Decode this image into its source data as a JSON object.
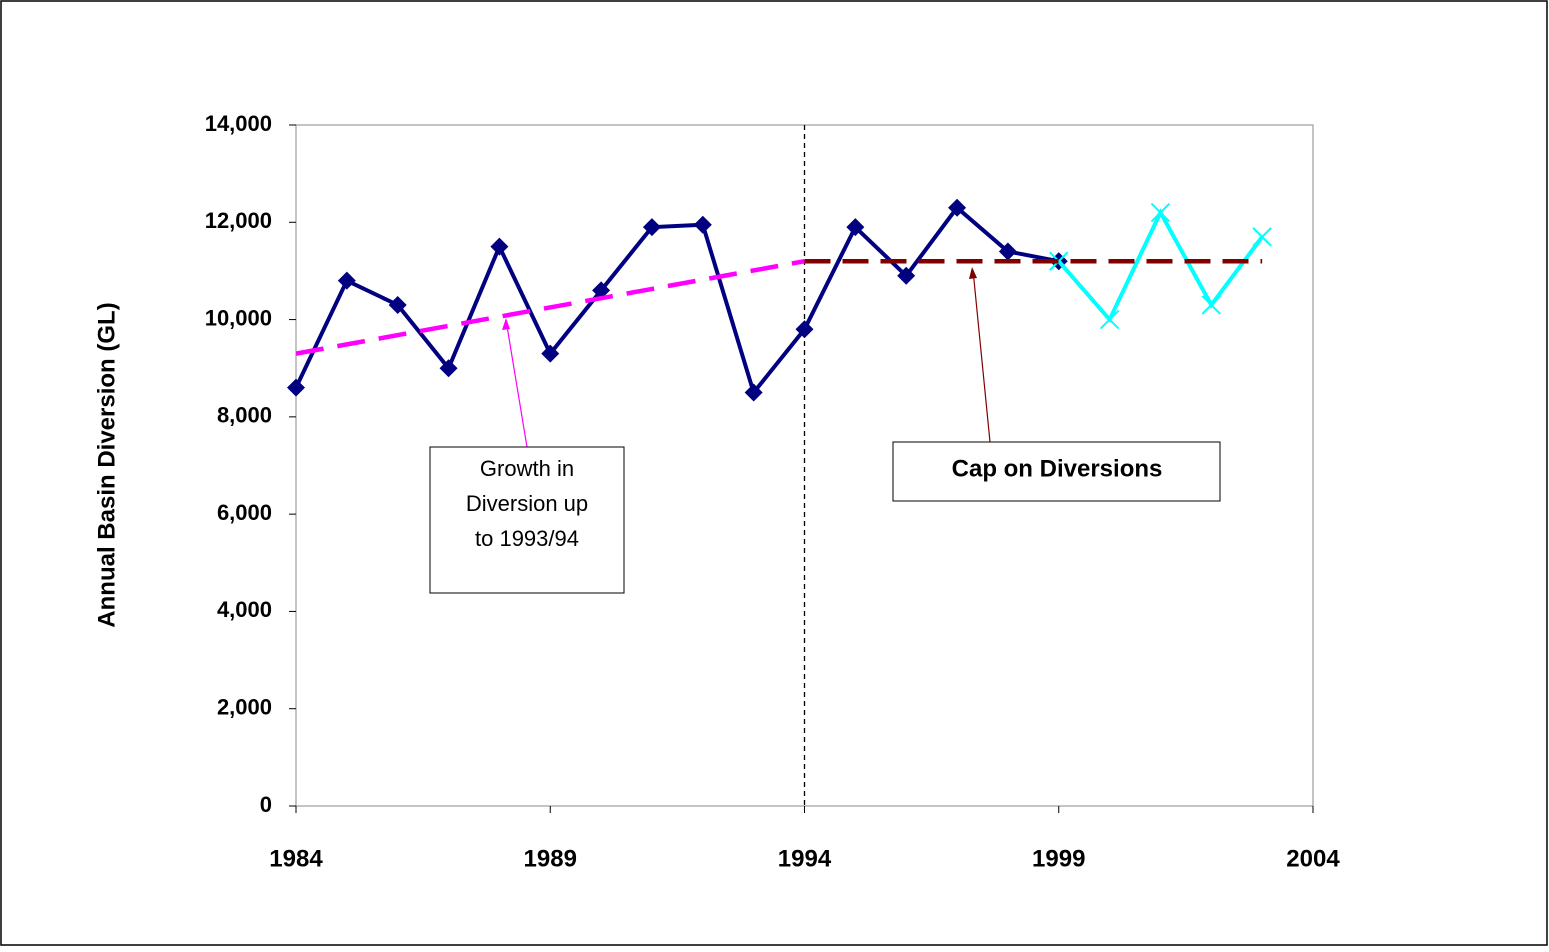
{
  "chart_data": {
    "type": "line",
    "ylabel": "Annual Basin Diversion (GL)",
    "xlim": [
      1984,
      2004
    ],
    "xticks": [
      1984,
      1989,
      1994,
      1999,
      2004
    ],
    "ylim": [
      0,
      14000
    ],
    "yticks": [
      0,
      {
        "value": 2000,
        "label": "2,000"
      },
      {
        "value": 4000,
        "label": "4,000"
      },
      {
        "value": 6000,
        "label": "6,000"
      },
      {
        "value": 8000,
        "label": "8,000"
      },
      {
        "value": 10000,
        "label": "10,000"
      },
      {
        "value": 12000,
        "label": "12,000"
      },
      {
        "value": 14000,
        "label": "14,000"
      }
    ],
    "vline_x": 1994,
    "series": [
      {
        "color": "#000080",
        "marker": "diamond",
        "dash": "solid",
        "x": [
          1984,
          1985,
          1986,
          1987,
          1988,
          1989,
          1990,
          1991,
          1992,
          1993,
          1994,
          1995,
          1996,
          1997,
          1998,
          1999
        ],
        "values": [
          8600,
          10800,
          10300,
          9000,
          11500,
          9300,
          10600,
          11900,
          11950,
          8500,
          9800,
          11900,
          10900,
          12300,
          11400,
          11200
        ]
      },
      {
        "color": "#00ffff",
        "marker": "x",
        "dash": "solid",
        "x": [
          1999,
          2000,
          2001,
          2002,
          2003
        ],
        "values": [
          11200,
          10000,
          12200,
          10300,
          11700
        ]
      },
      {
        "color": "#ff00ff",
        "marker": "none",
        "dash": "dashed",
        "x": [
          1984,
          1994
        ],
        "values": [
          9300,
          11200
        ]
      },
      {
        "color": "#800000",
        "marker": "none",
        "dash": "dashed",
        "x": [
          1994,
          2003
        ],
        "values": [
          11200,
          11200
        ]
      }
    ],
    "annotations": [
      {
        "lines": [
          "Growth in",
          "Diversion up",
          "to 1993/94"
        ]
      },
      {
        "lines": [
          "Cap on Diversions"
        ]
      }
    ]
  }
}
